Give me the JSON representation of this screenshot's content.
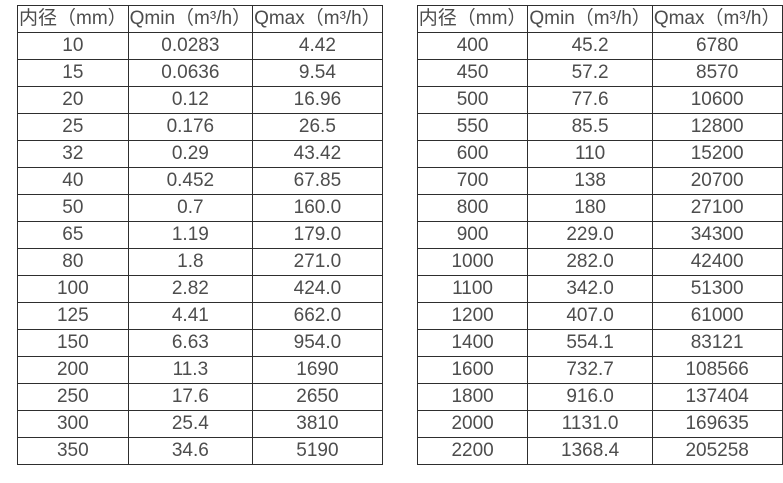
{
  "colors": {
    "border": "#2e2e2e",
    "text": "#4d4d4d",
    "background": "#ffffff"
  },
  "tables": [
    {
      "name": "flow-spec-table-small-diameters",
      "headers": [
        "内径（mm）",
        "Qmin（m³/h）",
        "Qmax（m³/h）"
      ],
      "rows": [
        [
          "10",
          "0.0283",
          "4.42"
        ],
        [
          "15",
          "0.0636",
          "9.54"
        ],
        [
          "20",
          "0.12",
          "16.96"
        ],
        [
          "25",
          "0.176",
          "26.5"
        ],
        [
          "32",
          "0.29",
          "43.42"
        ],
        [
          "40",
          "0.452",
          "67.85"
        ],
        [
          "50",
          "0.7",
          "160.0"
        ],
        [
          "65",
          "1.19",
          "179.0"
        ],
        [
          "80",
          "1.8",
          "271.0"
        ],
        [
          "100",
          "2.82",
          "424.0"
        ],
        [
          "125",
          "4.41",
          "662.0"
        ],
        [
          "150",
          "6.63",
          "954.0"
        ],
        [
          "200",
          "11.3",
          "1690"
        ],
        [
          "250",
          "17.6",
          "2650"
        ],
        [
          "300",
          "25.4",
          "3810"
        ],
        [
          "350",
          "34.6",
          "5190"
        ]
      ]
    },
    {
      "name": "flow-spec-table-large-diameters",
      "headers": [
        "内径（mm）",
        "Qmin（m³/h）",
        "Qmax（m³/h）"
      ],
      "rows": [
        [
          "400",
          "45.2",
          "6780"
        ],
        [
          "450",
          "57.2",
          "8570"
        ],
        [
          "500",
          "77.6",
          "10600"
        ],
        [
          "550",
          "85.5",
          "12800"
        ],
        [
          "600",
          "110",
          "15200"
        ],
        [
          "700",
          "138",
          "20700"
        ],
        [
          "800",
          "180",
          "27100"
        ],
        [
          "900",
          "229.0",
          "34300"
        ],
        [
          "1000",
          "282.0",
          "42400"
        ],
        [
          "1100",
          "342.0",
          "51300"
        ],
        [
          "1200",
          "407.0",
          "61000"
        ],
        [
          "1400",
          "554.1",
          "83121"
        ],
        [
          "1600",
          "732.7",
          "108566"
        ],
        [
          "1800",
          "916.0",
          "137404"
        ],
        [
          "2000",
          "1131.0",
          "169635"
        ],
        [
          "2200",
          "1368.4",
          "205258"
        ]
      ]
    }
  ]
}
